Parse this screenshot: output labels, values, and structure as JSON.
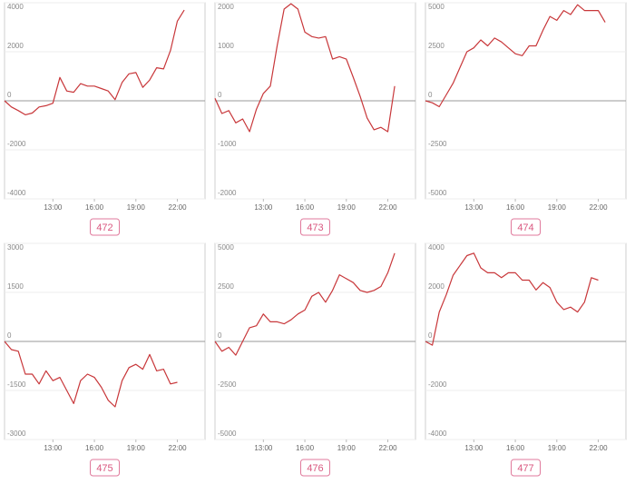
{
  "chart_data": [
    {
      "type": "line",
      "title": "472",
      "color": "#c8373a",
      "x": [
        9.5,
        10,
        10.5,
        11,
        11.5,
        12,
        12.5,
        13,
        13.5,
        14,
        14.5,
        15,
        15.5,
        16,
        16.5,
        17,
        17.5,
        18,
        18.5,
        19,
        19.5,
        20,
        20.5,
        21,
        21.5,
        22,
        22.5
      ],
      "values": [
        0,
        -250,
        -400,
        -570,
        -500,
        -250,
        -200,
        -100,
        950,
        400,
        350,
        700,
        600,
        600,
        500,
        400,
        50,
        750,
        1100,
        1150,
        550,
        850,
        1350,
        1300,
        2050,
        3250,
        3700
      ],
      "xlim": [
        9.5,
        24
      ],
      "xticks": [
        {
          "value": 13,
          "label": "13:00"
        },
        {
          "value": 16,
          "label": "16:00"
        },
        {
          "value": 19,
          "label": "19:00"
        },
        {
          "value": 22,
          "label": "22:00"
        }
      ],
      "ylim": [
        -4000,
        4000
      ],
      "yticks": [
        -4000,
        -2000,
        0,
        2000,
        4000
      ],
      "grid": true
    },
    {
      "type": "line",
      "title": "473",
      "color": "#c8373a",
      "x": [
        9.5,
        10,
        10.5,
        11,
        11.5,
        12,
        12.5,
        13,
        13.5,
        14,
        14.5,
        15,
        15.5,
        16,
        16.5,
        17,
        17.5,
        18,
        18.5,
        19,
        19.5,
        20,
        20.5,
        21,
        21.5,
        22,
        22.5
      ],
      "values": [
        50,
        -260,
        -200,
        -450,
        -370,
        -630,
        -170,
        150,
        300,
        1130,
        1870,
        1980,
        1870,
        1400,
        1310,
        1280,
        1310,
        850,
        900,
        850,
        480,
        90,
        -350,
        -590,
        -540,
        -630,
        300
      ],
      "xlim": [
        9.5,
        24
      ],
      "xticks": [
        {
          "value": 13,
          "label": "13:00"
        },
        {
          "value": 16,
          "label": "16:00"
        },
        {
          "value": 19,
          "label": "19:00"
        },
        {
          "value": 22,
          "label": "22:00"
        }
      ],
      "ylim": [
        -2000,
        2000
      ],
      "yticks": [
        -2000,
        -1000,
        0,
        1000,
        2000
      ],
      "grid": true
    },
    {
      "type": "line",
      "title": "474",
      "color": "#c8373a",
      "x": [
        9.5,
        10,
        10.5,
        11,
        11.5,
        12,
        12.5,
        13,
        13.5,
        14,
        14.5,
        15,
        15.5,
        16,
        16.5,
        17,
        17.5,
        18,
        18.5,
        19,
        19.5,
        20,
        20.5,
        21,
        21.5,
        22,
        22.5
      ],
      "values": [
        0,
        -100,
        -300,
        300,
        900,
        1700,
        2500,
        2700,
        3100,
        2800,
        3200,
        3000,
        2700,
        2400,
        2300,
        2800,
        2800,
        3600,
        4300,
        4100,
        4600,
        4400,
        4900,
        4600,
        4600,
        4600,
        4000
      ],
      "xlim": [
        9.5,
        24
      ],
      "xticks": [
        {
          "value": 13,
          "label": "13:00"
        },
        {
          "value": 16,
          "label": "16:00"
        },
        {
          "value": 19,
          "label": "19:00"
        },
        {
          "value": 22,
          "label": "22:00"
        }
      ],
      "ylim": [
        -5000,
        5000
      ],
      "yticks": [
        -5000,
        -2500,
        0,
        2500,
        5000
      ],
      "grid": true
    },
    {
      "type": "line",
      "title": "475",
      "color": "#c8373a",
      "x": [
        9.5,
        10,
        10.5,
        11,
        11.5,
        12,
        12.5,
        13,
        13.5,
        14,
        14.5,
        15,
        15.5,
        16,
        16.5,
        17,
        17.5,
        18,
        18.5,
        19,
        19.5,
        20,
        20.5,
        21,
        21.5,
        22
      ],
      "values": [
        0,
        -250,
        -300,
        -1000,
        -1000,
        -1300,
        -900,
        -1200,
        -1100,
        -1500,
        -1900,
        -1200,
        -1000,
        -1100,
        -1400,
        -1800,
        -2000,
        -1200,
        -800,
        -700,
        -850,
        -400,
        -900,
        -850,
        -1300,
        -1250
      ],
      "xlim": [
        9.5,
        24
      ],
      "xticks": [
        {
          "value": 13,
          "label": "13:00"
        },
        {
          "value": 16,
          "label": "16:00"
        },
        {
          "value": 19,
          "label": "19:00"
        },
        {
          "value": 22,
          "label": "22:00"
        }
      ],
      "ylim": [
        -3000,
        3000
      ],
      "yticks": [
        -3000,
        -1500,
        0,
        1500,
        3000
      ],
      "grid": true
    },
    {
      "type": "line",
      "title": "476",
      "color": "#c8373a",
      "x": [
        9.5,
        10,
        10.5,
        11,
        11.5,
        12,
        12.5,
        13,
        13.5,
        14,
        14.5,
        15,
        15.5,
        16,
        16.5,
        17,
        17.5,
        18,
        18.5,
        19,
        19.5,
        20,
        20.5,
        21,
        21.5,
        22,
        22.5
      ],
      "values": [
        0,
        -500,
        -300,
        -700,
        0,
        700,
        800,
        1400,
        1000,
        1000,
        900,
        1100,
        1400,
        1600,
        2300,
        2500,
        2000,
        2600,
        3400,
        3200,
        3000,
        2600,
        2500,
        2600,
        2800,
        3500,
        4500
      ],
      "xlim": [
        9.5,
        24
      ],
      "xticks": [
        {
          "value": 13,
          "label": "13:00"
        },
        {
          "value": 16,
          "label": "16:00"
        },
        {
          "value": 19,
          "label": "19:00"
        },
        {
          "value": 22,
          "label": "22:00"
        }
      ],
      "ylim": [
        -5000,
        5000
      ],
      "yticks": [
        -5000,
        -2500,
        0,
        2500,
        5000
      ],
      "grid": true
    },
    {
      "type": "line",
      "title": "477",
      "color": "#c8373a",
      "x": [
        9.5,
        10,
        10.5,
        11,
        11.5,
        12,
        12.5,
        13,
        13.5,
        14,
        14.5,
        15,
        15.5,
        16,
        16.5,
        17,
        17.5,
        18,
        18.5,
        19,
        19.5,
        20,
        20.5,
        21,
        21.5,
        22
      ],
      "values": [
        0,
        -150,
        1200,
        1900,
        2700,
        3100,
        3500,
        3600,
        3000,
        2800,
        2800,
        2600,
        2800,
        2800,
        2500,
        2500,
        2100,
        2400,
        2200,
        1600,
        1300,
        1400,
        1200,
        1600,
        2600,
        2500
      ],
      "xlim": [
        9.5,
        24
      ],
      "xticks": [
        {
          "value": 13,
          "label": "13:00"
        },
        {
          "value": 16,
          "label": "16:00"
        },
        {
          "value": 19,
          "label": "19:00"
        },
        {
          "value": 22,
          "label": "22:00"
        }
      ],
      "ylim": [
        -4000,
        4000
      ],
      "yticks": [
        -4000,
        -2000,
        0,
        2000,
        4000
      ],
      "grid": true
    }
  ]
}
